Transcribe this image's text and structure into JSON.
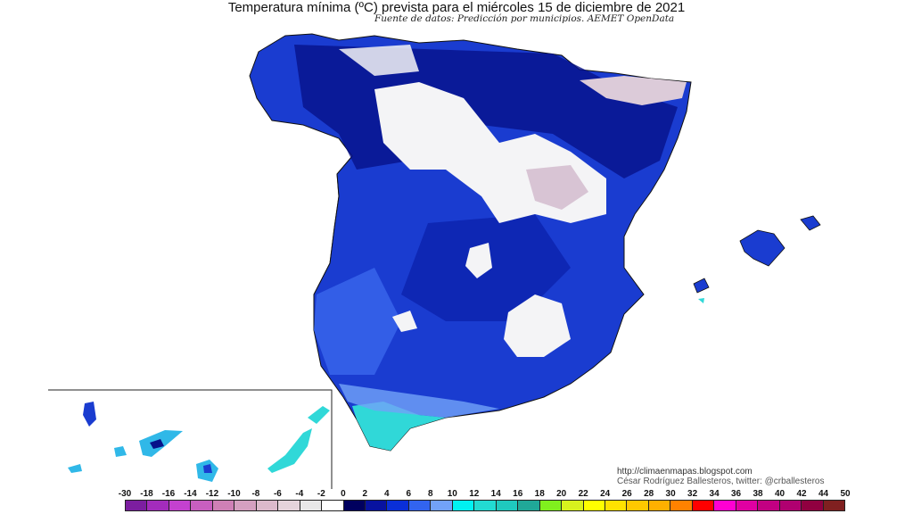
{
  "title": "Temperatura mínima (ºC) prevista para el miércoles 15 de diciembre de 2021",
  "subtitle": "Fuente de datos: Predicción por municipios. AEMET OpenData",
  "credits": {
    "url": "http://climaenmapas.blogspot.com",
    "author": "César Rodríguez Ballesteros, twitter: @crballesteros"
  },
  "legend": {
    "labels": [
      "-30",
      "-18",
      "-16",
      "-14",
      "-12",
      "-10",
      "-8",
      "-6",
      "-4",
      "-2",
      "0",
      "2",
      "4",
      "6",
      "8",
      "10",
      "12",
      "14",
      "16",
      "18",
      "20",
      "22",
      "24",
      "26",
      "28",
      "30",
      "32",
      "34",
      "36",
      "38",
      "40",
      "42",
      "44",
      "50"
    ],
    "colors": [
      "#7c1ea0",
      "#a32cbc",
      "#c441cf",
      "#c85fbf",
      "#cf80b6",
      "#d5a0c0",
      "#dcb9cb",
      "#e6d3db",
      "#e8e8e8",
      "#ffffff",
      "#00005e",
      "#0812a0",
      "#0a2fd8",
      "#3264f0",
      "#72a2f8",
      "#00f2f2",
      "#22dbd2",
      "#1fc9be",
      "#20a898",
      "#80f01e",
      "#d8f21e",
      "#ffff00",
      "#ffe200",
      "#ffc800",
      "#ffb000",
      "#ff8200",
      "#ff0000",
      "#ff00d2",
      "#e000a2",
      "#c20082",
      "#b00070",
      "#900040",
      "#802020"
    ]
  },
  "map_colors": {
    "base": "#1a3cd0",
    "dark": "#06128a",
    "white": "#f4f4f6",
    "cold": "#d8c4d4",
    "light": "#4a78f0",
    "cyan": "#30d8d8",
    "border": "#111111"
  }
}
